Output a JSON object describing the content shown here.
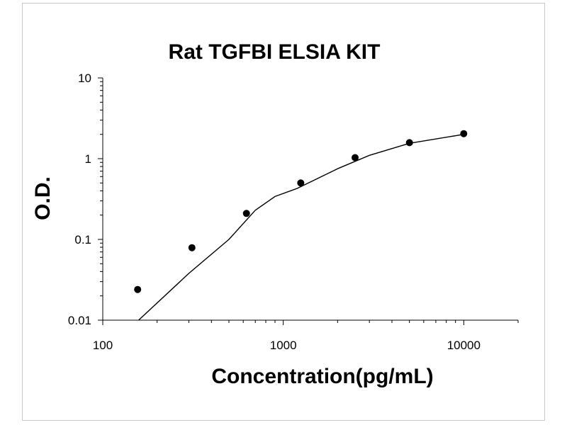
{
  "chart_data": {
    "type": "scatter",
    "title": "Rat TGFBI ELSIA KIT",
    "xlabel": "Concentration(pg/mL)",
    "ylabel": "O.D.",
    "x_scale": "log",
    "y_scale": "log",
    "xlim": [
      100,
      20000
    ],
    "ylim": [
      0.01,
      10
    ],
    "x_ticks": [
      "100",
      "1000",
      "10000"
    ],
    "y_ticks": [
      "10",
      "1",
      "0.1",
      "0.01"
    ],
    "grid": false,
    "legend": "none",
    "points": [
      {
        "x": 156,
        "y": 0.024
      },
      {
        "x": 312,
        "y": 0.079
      },
      {
        "x": 625,
        "y": 0.21
      },
      {
        "x": 1250,
        "y": 0.5
      },
      {
        "x": 2500,
        "y": 1.03
      },
      {
        "x": 5000,
        "y": 1.58
      },
      {
        "x": 10000,
        "y": 2.04
      }
    ],
    "fit_curve": [
      {
        "x": 158,
        "y": 0.01
      },
      {
        "x": 300,
        "y": 0.038
      },
      {
        "x": 500,
        "y": 0.1
      },
      {
        "x": 700,
        "y": 0.23
      },
      {
        "x": 900,
        "y": 0.34
      },
      {
        "x": 1200,
        "y": 0.43
      },
      {
        "x": 2000,
        "y": 0.75
      },
      {
        "x": 3000,
        "y": 1.1
      },
      {
        "x": 5000,
        "y": 1.55
      },
      {
        "x": 10000,
        "y": 2.0
      }
    ],
    "colors": {
      "marker": "#000000",
      "line": "#000000",
      "axis": "#000000"
    }
  }
}
